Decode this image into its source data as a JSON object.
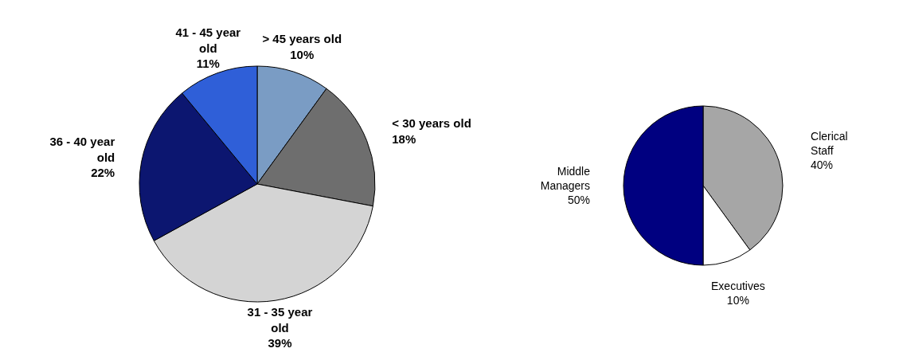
{
  "chart_data": [
    {
      "type": "pie",
      "categories": [
        "> 45 years old",
        "< 30 years old",
        "31 - 35 year old",
        "36 - 40 year old",
        "41 - 45 year old"
      ],
      "values": [
        10,
        18,
        39,
        22,
        11
      ],
      "value_labels": [
        "10%",
        "18%",
        "39%",
        "22%",
        "11%"
      ],
      "colors": [
        "#7a9cc4",
        "#6e6e6e",
        "#d4d4d4",
        "#0c1670",
        "#2f5fd8"
      ],
      "legend": false
    },
    {
      "type": "pie",
      "categories": [
        "Clerical Staff",
        "Executives",
        "Middle Managers"
      ],
      "values": [
        40,
        10,
        50
      ],
      "value_labels": [
        "40%",
        "10%",
        "50%"
      ],
      "colors": [
        "#a6a6a6",
        "#ffffff",
        "#000080"
      ],
      "legend": false
    }
  ]
}
